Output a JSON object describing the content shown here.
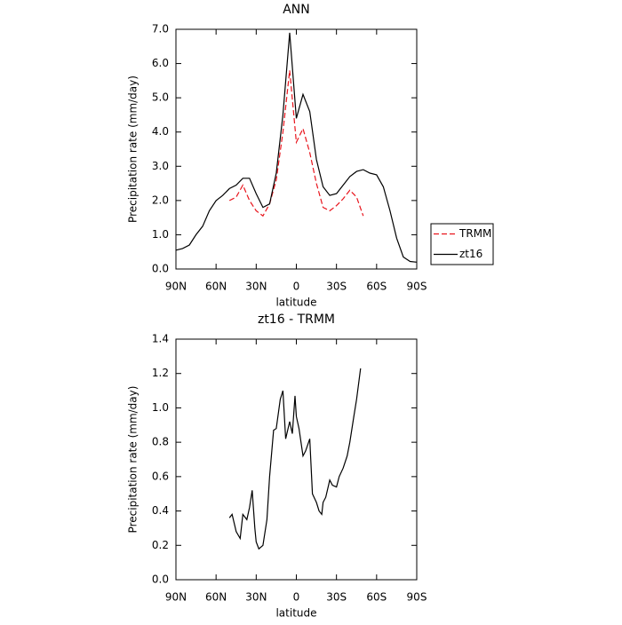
{
  "chart_data": [
    {
      "type": "line",
      "title": "ANN",
      "x_label": "latitude",
      "y_label": "Precipitation rate (mm/day)",
      "x": [
        90,
        85,
        80,
        75,
        70,
        65,
        60,
        55,
        50,
        45,
        40,
        35,
        30,
        25,
        20,
        15,
        10,
        5,
        0,
        -5,
        -10,
        -15,
        -20,
        -25,
        -30,
        -35,
        -40,
        -45,
        -50,
        -55,
        -60,
        -65,
        -70,
        -75,
        -80,
        -85,
        -90
      ],
      "series": [
        {
          "name": "TRMM",
          "color": "#e8141c",
          "dash": true,
          "values": [
            null,
            null,
            null,
            null,
            null,
            null,
            null,
            null,
            2.0,
            2.1,
            2.45,
            2.0,
            1.7,
            1.55,
            1.9,
            2.6,
            4.0,
            5.8,
            3.7,
            4.1,
            3.4,
            2.5,
            1.8,
            1.7,
            1.85,
            2.05,
            2.3,
            2.1,
            1.55,
            null,
            null,
            null,
            null,
            null,
            null,
            null,
            null
          ]
        },
        {
          "name": "zt16",
          "color": "#000000",
          "dash": false,
          "values": [
            0.55,
            0.6,
            0.7,
            1.0,
            1.25,
            1.7,
            2.0,
            2.15,
            2.35,
            2.45,
            2.65,
            2.65,
            2.2,
            1.8,
            1.9,
            2.8,
            4.5,
            6.9,
            4.4,
            5.1,
            4.6,
            3.2,
            2.4,
            2.15,
            2.2,
            2.45,
            2.7,
            2.85,
            2.9,
            2.8,
            2.75,
            2.4,
            1.7,
            0.9,
            0.35,
            0.22,
            0.2
          ]
        }
      ],
      "xlim": [
        90,
        -90
      ],
      "xticks": [
        {
          "value": 90,
          "label": "90N"
        },
        {
          "value": 60,
          "label": "60N"
        },
        {
          "value": 30,
          "label": "30N"
        },
        0,
        {
          "value": -30,
          "label": "30S"
        },
        {
          "value": -60,
          "label": "60S"
        },
        {
          "value": -90,
          "label": "90S"
        }
      ],
      "ylim": [
        0,
        7
      ],
      "yticks": [
        {
          "value": 0,
          "label": "0.0"
        },
        {
          "value": 1,
          "label": "1.0"
        },
        {
          "value": 2,
          "label": "2.0"
        },
        {
          "value": 3,
          "label": "3.0"
        },
        {
          "value": 4,
          "label": "4.0"
        },
        {
          "value": 5,
          "label": "5.0"
        },
        {
          "value": 6,
          "label": "6.0"
        },
        {
          "value": 7,
          "label": "7.0"
        }
      ],
      "legend": "right"
    },
    {
      "type": "line",
      "title": "zt16 - TRMM",
      "x_label": "latitude",
      "y_label": "Precipitation rate (mm/day)",
      "x": [
        50,
        48,
        45,
        42,
        40,
        37,
        35,
        33,
        31,
        30,
        28,
        25,
        22,
        20,
        17,
        15,
        12,
        10,
        8,
        5,
        3,
        1,
        0,
        -2,
        -5,
        -7,
        -10,
        -12,
        -15,
        -17,
        -19,
        -20,
        -22,
        -25,
        -27,
        -30,
        -32,
        -35,
        -38,
        -40,
        -43,
        -45,
        -48
      ],
      "series": [
        {
          "color": "#000000",
          "dash": false,
          "values": [
            0.36,
            0.38,
            0.28,
            0.24,
            0.38,
            0.35,
            0.42,
            0.52,
            0.3,
            0.22,
            0.18,
            0.2,
            0.35,
            0.6,
            0.87,
            0.88,
            1.05,
            1.1,
            0.82,
            0.92,
            0.85,
            1.07,
            0.95,
            0.88,
            0.72,
            0.75,
            0.82,
            0.5,
            0.45,
            0.4,
            0.38,
            0.45,
            0.48,
            0.58,
            0.55,
            0.54,
            0.6,
            0.65,
            0.72,
            0.8,
            0.95,
            1.05,
            1.23
          ]
        }
      ],
      "xlim": [
        90,
        -90
      ],
      "xticks": [
        {
          "value": 90,
          "label": "90N"
        },
        {
          "value": 60,
          "label": "60N"
        },
        {
          "value": 30,
          "label": "30N"
        },
        0,
        {
          "value": -30,
          "label": "30S"
        },
        {
          "value": -60,
          "label": "60S"
        },
        {
          "value": -90,
          "label": "90S"
        }
      ],
      "ylim": [
        0,
        1.4
      ],
      "yticks": [
        {
          "value": 0,
          "label": "0.0"
        },
        0.2,
        0.4,
        0.6,
        0.8,
        {
          "value": 1,
          "label": "1.0"
        },
        1.2,
        1.4
      ]
    }
  ]
}
